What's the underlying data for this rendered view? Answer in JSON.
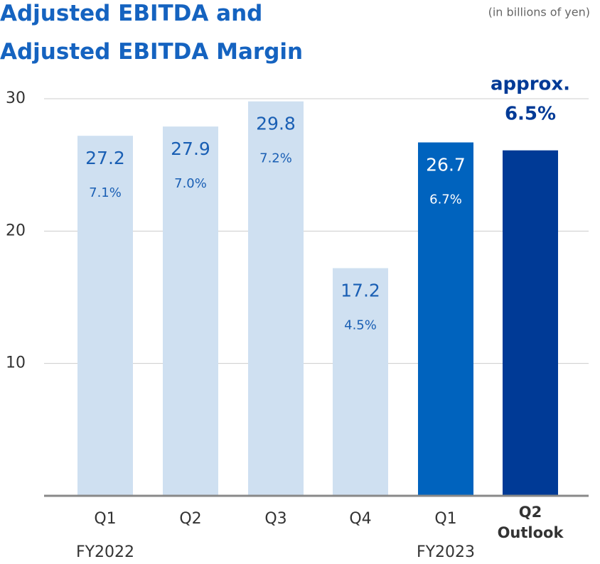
{
  "chart_data": {
    "type": "bar",
    "title": "Adjusted EBITDA and Adjusted EBITDA Margin",
    "subtitle": "(in billions of yen)",
    "categories": [
      "Q1",
      "Q2",
      "Q3",
      "Q4",
      "Q1",
      "Q2 Outlook"
    ],
    "groups": [
      "FY2022",
      "FY2022",
      "FY2022",
      "FY2022",
      "FY2023",
      "FY2023"
    ],
    "values": [
      27.2,
      27.9,
      29.8,
      17.2,
      26.7,
      26.1
    ],
    "value_labels": [
      "27.2",
      "27.9",
      "29.8",
      "17.2",
      "26.7",
      null
    ],
    "margins": [
      7.1,
      7.0,
      7.2,
      4.5,
      6.7,
      6.5
    ],
    "margin_labels": [
      "7.1%",
      "7.0%",
      "7.2%",
      "4.5%",
      "6.7%",
      "approx. 6.5%"
    ],
    "colors": [
      "#cfe0f1",
      "#cfe0f1",
      "#cfe0f1",
      "#cfe0f1",
      "#0063be",
      "#003a96"
    ],
    "ylim": [
      0,
      30
    ],
    "yticks": [
      10,
      20,
      30
    ],
    "grid": true
  }
}
